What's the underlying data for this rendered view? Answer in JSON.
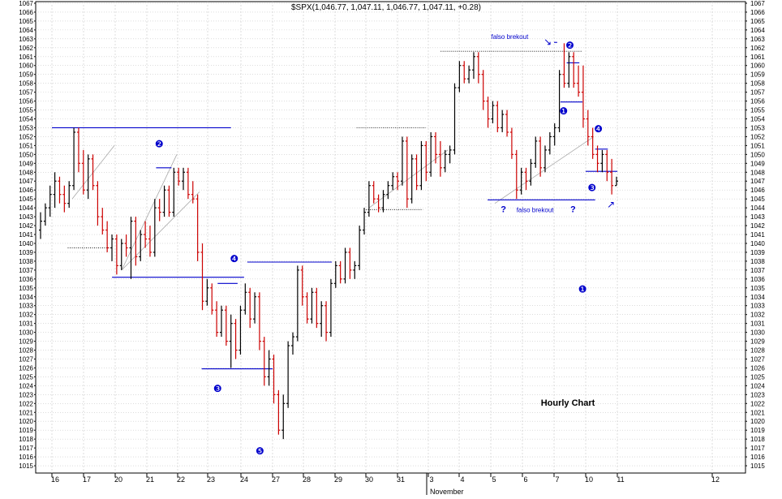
{
  "chart_data": {
    "type": "ohlc",
    "title": "$SPX(1,046.77, 1,047.11, 1,046.77, 1,047.11, +0.28)",
    "watermark": "Hourly Chart",
    "ylim": [
      1014,
      1067
    ],
    "ytick_step": 1,
    "x_tick_labels": [
      "16",
      "17",
      "20",
      "21",
      "22",
      "23",
      "24",
      "27",
      "28",
      "29",
      "30",
      "31",
      "3",
      "4",
      "5",
      "6",
      "7",
      "10",
      "11",
      "12"
    ],
    "x_month_label": "November",
    "colors": {
      "up": "#000000",
      "down": "#cc0000",
      "lines": "#0000cc",
      "grid": "#c8c8c8",
      "trend": "#a8a8a8",
      "text": "#000000",
      "marker": "#0000cc"
    },
    "candles": [
      {
        "o": 1041.5,
        "h": 1043.5,
        "l": 1040.5,
        "c": 1042.5
      },
      {
        "o": 1042.5,
        "h": 1044.5,
        "l": 1042,
        "c": 1044
      },
      {
        "o": 1044,
        "h": 1046.5,
        "l": 1043,
        "c": 1045.5
      },
      {
        "o": 1045.5,
        "h": 1048,
        "l": 1044,
        "c": 1047
      },
      {
        "o": 1047,
        "h": 1047.5,
        "l": 1044.5,
        "c": 1045.5
      },
      {
        "o": 1045.5,
        "h": 1046.5,
        "l": 1043.5,
        "c": 1044.5
      },
      {
        "o": 1044.5,
        "h": 1047,
        "l": 1044,
        "c": 1046.5
      },
      {
        "o": 1046.5,
        "h": 1053,
        "l": 1046,
        "c": 1052.5
      },
      {
        "o": 1052.5,
        "h": 1053,
        "l": 1048,
        "c": 1049
      },
      {
        "o": 1049,
        "h": 1050.5,
        "l": 1045.5,
        "c": 1046
      },
      {
        "o": 1046,
        "h": 1050,
        "l": 1045,
        "c": 1049.5
      },
      {
        "o": 1049.5,
        "h": 1050,
        "l": 1046,
        "c": 1046.5
      },
      {
        "o": 1046.5,
        "h": 1047,
        "l": 1042,
        "c": 1043
      },
      {
        "o": 1043,
        "h": 1044,
        "l": 1041,
        "c": 1041.5
      },
      {
        "o": 1041.5,
        "h": 1042.5,
        "l": 1039,
        "c": 1039.5
      },
      {
        "o": 1039.5,
        "h": 1041,
        "l": 1038,
        "c": 1040.5
      },
      {
        "o": 1040.5,
        "h": 1041,
        "l": 1036.5,
        "c": 1037.5
      },
      {
        "o": 1037.5,
        "h": 1040.5,
        "l": 1037,
        "c": 1040
      },
      {
        "o": 1040,
        "h": 1041,
        "l": 1038.5,
        "c": 1039.5
      },
      {
        "o": 1039.5,
        "h": 1043,
        "l": 1036,
        "c": 1042.5
      },
      {
        "o": 1042.5,
        "h": 1043,
        "l": 1037.5,
        "c": 1038.5
      },
      {
        "o": 1038.5,
        "h": 1041.5,
        "l": 1038,
        "c": 1041
      },
      {
        "o": 1041,
        "h": 1042.5,
        "l": 1039.5,
        "c": 1040.5
      },
      {
        "o": 1040.5,
        "h": 1042,
        "l": 1038.5,
        "c": 1039
      },
      {
        "o": 1039,
        "h": 1045,
        "l": 1038.5,
        "c": 1044
      },
      {
        "o": 1044,
        "h": 1045,
        "l": 1042.5,
        "c": 1043.5
      },
      {
        "o": 1043.5,
        "h": 1046.5,
        "l": 1043,
        "c": 1046
      },
      {
        "o": 1046,
        "h": 1046.5,
        "l": 1043,
        "c": 1043.5
      },
      {
        "o": 1043.5,
        "h": 1048.5,
        "l": 1043,
        "c": 1048
      },
      {
        "o": 1048,
        "h": 1048.5,
        "l": 1046.5,
        "c": 1047
      },
      {
        "o": 1047,
        "h": 1048.5,
        "l": 1046,
        "c": 1048
      },
      {
        "o": 1048,
        "h": 1048.5,
        "l": 1045,
        "c": 1045.5
      },
      {
        "o": 1045.5,
        "h": 1047,
        "l": 1044.5,
        "c": 1045
      },
      {
        "o": 1045,
        "h": 1045.5,
        "l": 1038,
        "c": 1039
      },
      {
        "o": 1039,
        "h": 1040,
        "l": 1032.5,
        "c": 1033.5
      },
      {
        "o": 1033.5,
        "h": 1036,
        "l": 1033,
        "c": 1035
      },
      {
        "o": 1035,
        "h": 1035.5,
        "l": 1032,
        "c": 1032.5
      },
      {
        "o": 1032.5,
        "h": 1033.5,
        "l": 1029.5,
        "c": 1030
      },
      {
        "o": 1030,
        "h": 1033,
        "l": 1029.5,
        "c": 1032.5
      },
      {
        "o": 1032.5,
        "h": 1033,
        "l": 1028.5,
        "c": 1029
      },
      {
        "o": 1029,
        "h": 1032,
        "l": 1026,
        "c": 1031
      },
      {
        "o": 1031,
        "h": 1031.5,
        "l": 1027,
        "c": 1028
      },
      {
        "o": 1028,
        "h": 1033,
        "l": 1027.5,
        "c": 1032.5
      },
      {
        "o": 1032.5,
        "h": 1035.5,
        "l": 1032,
        "c": 1034.5
      },
      {
        "o": 1034.5,
        "h": 1035,
        "l": 1030.5,
        "c": 1031.5
      },
      {
        "o": 1031.5,
        "h": 1034.5,
        "l": 1031,
        "c": 1034
      },
      {
        "o": 1034,
        "h": 1034.5,
        "l": 1028,
        "c": 1029
      },
      {
        "o": 1029,
        "h": 1029.5,
        "l": 1024,
        "c": 1025
      },
      {
        "o": 1025,
        "h": 1028,
        "l": 1024,
        "c": 1027
      },
      {
        "o": 1027,
        "h": 1027.5,
        "l": 1022,
        "c": 1023
      },
      {
        "o": 1023,
        "h": 1023.5,
        "l": 1018.5,
        "c": 1019
      },
      {
        "o": 1019,
        "h": 1023,
        "l": 1018,
        "c": 1022
      },
      {
        "o": 1022,
        "h": 1029,
        "l": 1021.5,
        "c": 1028.5
      },
      {
        "o": 1028.5,
        "h": 1030,
        "l": 1027.5,
        "c": 1029.5
      },
      {
        "o": 1029.5,
        "h": 1037.5,
        "l": 1029,
        "c": 1037
      },
      {
        "o": 1037,
        "h": 1037.5,
        "l": 1033,
        "c": 1034
      },
      {
        "o": 1034,
        "h": 1034.5,
        "l": 1031,
        "c": 1031.5
      },
      {
        "o": 1031.5,
        "h": 1035,
        "l": 1031,
        "c": 1034.5
      },
      {
        "o": 1034.5,
        "h": 1035,
        "l": 1030.5,
        "c": 1031
      },
      {
        "o": 1031,
        "h": 1033.5,
        "l": 1029.5,
        "c": 1033
      },
      {
        "o": 1033,
        "h": 1033.5,
        "l": 1029,
        "c": 1030
      },
      {
        "o": 1030,
        "h": 1036,
        "l": 1029.5,
        "c": 1035.5
      },
      {
        "o": 1035.5,
        "h": 1038,
        "l": 1035,
        "c": 1037.5
      },
      {
        "o": 1037.5,
        "h": 1038,
        "l": 1035.5,
        "c": 1036
      },
      {
        "o": 1036,
        "h": 1039.5,
        "l": 1035.5,
        "c": 1039
      },
      {
        "o": 1039,
        "h": 1039.5,
        "l": 1036,
        "c": 1037
      },
      {
        "o": 1037,
        "h": 1038,
        "l": 1036,
        "c": 1037.5
      },
      {
        "o": 1037.5,
        "h": 1042,
        "l": 1037,
        "c": 1041.5
      },
      {
        "o": 1041.5,
        "h": 1044,
        "l": 1041,
        "c": 1043.5
      },
      {
        "o": 1043.5,
        "h": 1047,
        "l": 1043,
        "c": 1046.5
      },
      {
        "o": 1046.5,
        "h": 1047,
        "l": 1044.5,
        "c": 1045
      },
      {
        "o": 1045,
        "h": 1045.5,
        "l": 1043.5,
        "c": 1044
      },
      {
        "o": 1044,
        "h": 1046,
        "l": 1043.5,
        "c": 1045.5
      },
      {
        "o": 1045.5,
        "h": 1047,
        "l": 1045,
        "c": 1046.5
      },
      {
        "o": 1046.5,
        "h": 1048,
        "l": 1046,
        "c": 1047.5
      },
      {
        "o": 1047.5,
        "h": 1048,
        "l": 1046,
        "c": 1047
      },
      {
        "o": 1047,
        "h": 1052,
        "l": 1046.5,
        "c": 1051.5
      },
      {
        "o": 1051.5,
        "h": 1052,
        "l": 1044,
        "c": 1045
      },
      {
        "o": 1045,
        "h": 1050,
        "l": 1044.5,
        "c": 1049.5
      },
      {
        "o": 1049.5,
        "h": 1050,
        "l": 1046,
        "c": 1046.5
      },
      {
        "o": 1046.5,
        "h": 1051.5,
        "l": 1046,
        "c": 1051
      },
      {
        "o": 1051,
        "h": 1051.5,
        "l": 1047,
        "c": 1048
      },
      {
        "o": 1048,
        "h": 1052.5,
        "l": 1047.5,
        "c": 1052
      },
      {
        "o": 1052,
        "h": 1052.5,
        "l": 1049,
        "c": 1050
      },
      {
        "o": 1050,
        "h": 1051.5,
        "l": 1047.5,
        "c": 1048.5
      },
      {
        "o": 1048.5,
        "h": 1050.5,
        "l": 1048,
        "c": 1050
      },
      {
        "o": 1050,
        "h": 1051,
        "l": 1049,
        "c": 1050.5
      },
      {
        "o": 1050.5,
        "h": 1058,
        "l": 1050,
        "c": 1057.5
      },
      {
        "o": 1057.5,
        "h": 1060.5,
        "l": 1057,
        "c": 1060
      },
      {
        "o": 1060,
        "h": 1060.5,
        "l": 1058,
        "c": 1058.5
      },
      {
        "o": 1058.5,
        "h": 1060,
        "l": 1058,
        "c": 1059.5
      },
      {
        "o": 1059.5,
        "h": 1061.5,
        "l": 1058.5,
        "c": 1061
      },
      {
        "o": 1061,
        "h": 1061.5,
        "l": 1058,
        "c": 1059
      },
      {
        "o": 1059,
        "h": 1059.5,
        "l": 1055,
        "c": 1056
      },
      {
        "o": 1056,
        "h": 1056.5,
        "l": 1053,
        "c": 1054
      },
      {
        "o": 1054,
        "h": 1056,
        "l": 1053.5,
        "c": 1055.5
      },
      {
        "o": 1055.5,
        "h": 1056,
        "l": 1052.5,
        "c": 1053
      },
      {
        "o": 1053,
        "h": 1055,
        "l": 1052.5,
        "c": 1054.5
      },
      {
        "o": 1054.5,
        "h": 1055,
        "l": 1052,
        "c": 1052.5
      },
      {
        "o": 1052.5,
        "h": 1053,
        "l": 1049.5,
        "c": 1050
      },
      {
        "o": 1050,
        "h": 1050.5,
        "l": 1045,
        "c": 1046
      },
      {
        "o": 1046,
        "h": 1048.5,
        "l": 1045.5,
        "c": 1048
      },
      {
        "o": 1048,
        "h": 1048.5,
        "l": 1046,
        "c": 1047
      },
      {
        "o": 1047,
        "h": 1049.5,
        "l": 1046.5,
        "c": 1049
      },
      {
        "o": 1049,
        "h": 1052,
        "l": 1048.5,
        "c": 1051.5
      },
      {
        "o": 1051.5,
        "h": 1052,
        "l": 1047.5,
        "c": 1048.5
      },
      {
        "o": 1048.5,
        "h": 1051,
        "l": 1048,
        "c": 1050.5
      },
      {
        "o": 1050.5,
        "h": 1052.5,
        "l": 1050,
        "c": 1052
      },
      {
        "o": 1052,
        "h": 1053.5,
        "l": 1051,
        "c": 1053
      },
      {
        "o": 1053,
        "h": 1059.5,
        "l": 1052.5,
        "c": 1059
      },
      {
        "o": 1059,
        "h": 1062.5,
        "l": 1057.5,
        "c": 1058
      },
      {
        "o": 1058,
        "h": 1061.5,
        "l": 1057.5,
        "c": 1061
      },
      {
        "o": 1061,
        "h": 1061.5,
        "l": 1057.5,
        "c": 1058
      },
      {
        "o": 1058,
        "h": 1060,
        "l": 1056.5,
        "c": 1057
      },
      {
        "o": 1057,
        "h": 1060,
        "l": 1053,
        "c": 1054
      },
      {
        "o": 1054,
        "h": 1055,
        "l": 1051,
        "c": 1052
      },
      {
        "o": 1052,
        "h": 1053,
        "l": 1049.5,
        "c": 1050
      },
      {
        "o": 1050,
        "h": 1051,
        "l": 1048,
        "c": 1049
      },
      {
        "o": 1049,
        "h": 1050.5,
        "l": 1048,
        "c": 1050
      },
      {
        "o": 1050,
        "h": 1050.5,
        "l": 1047,
        "c": 1048
      },
      {
        "o": 1048,
        "h": 1049.5,
        "l": 1045.5,
        "c": 1046.5
      },
      {
        "o": 1046.5,
        "h": 1047.5,
        "l": 1046.5,
        "c": 1047
      }
    ],
    "annotations": [
      {
        "text": "❶",
        "at": [
          9.9,
          1034.5
        ],
        "kind": "marker"
      },
      {
        "text": "❷",
        "at": [
          21.4,
          1050.8
        ],
        "kind": "marker"
      },
      {
        "text": "❸",
        "at": [
          23.3,
          1023.3
        ],
        "kind": "marker"
      },
      {
        "text": "❹",
        "at": [
          23.8,
          1037.9
        ],
        "kind": "marker"
      },
      {
        "text": "❺",
        "at": [
          24.6,
          1016.3
        ],
        "kind": "marker"
      },
      {
        "text": "❶",
        "at": [
          7.3,
          1054.5
        ],
        "kind": "marker"
      },
      {
        "text": "❷",
        "at": [
          7.5,
          1061.9
        ],
        "kind": "marker"
      },
      {
        "text": "❸",
        "at": [
          10.2,
          1045.9
        ],
        "kind": "marker"
      },
      {
        "text": "❹",
        "at": [
          10.4,
          1052.5
        ],
        "kind": "marker"
      },
      {
        "text": "falso brekout",
        "at": [
          5.6,
          1063
        ],
        "kind": "label"
      },
      {
        "text": "falso brekout",
        "at": [
          6.4,
          1043.5
        ],
        "kind": "label"
      },
      {
        "text": "?",
        "at": [
          5.4,
          1043.5
        ],
        "kind": "question"
      },
      {
        "text": "?",
        "at": [
          9.6,
          1043.5
        ],
        "kind": "question"
      },
      {
        "text": "↘",
        "at": [
          6.8,
          1062.3
        ],
        "kind": "arrow"
      },
      {
        "text": "↗",
        "at": [
          10.8,
          1044
        ],
        "kind": "arrow"
      }
    ],
    "levels": [
      {
        "y": 1053,
        "from": "16",
        "to": "23.7",
        "style": "solid"
      },
      {
        "y": 1039.5,
        "from": "15.5",
        "to": "19.9",
        "style": "dotted"
      },
      {
        "y": 1036.2,
        "from": "19.9",
        "to": "24.1",
        "style": "solid"
      },
      {
        "y": 1048.5,
        "from": "21.3",
        "to": "21.8",
        "style": "solid"
      },
      {
        "y": 1035.5,
        "from": "23.3",
        "to": "23.9",
        "style": "solid"
      },
      {
        "y": 1025.9,
        "from": "22.8",
        "to": "27",
        "style": "solid"
      },
      {
        "y": 1037.9,
        "from": "26.2",
        "to": "28.9",
        "style": "solid"
      },
      {
        "y": 1053,
        "from": "29.7",
        "to": "31.9",
        "style": "dotted"
      },
      {
        "y": 1043.8,
        "from": "30",
        "to": "31.8",
        "style": "dotted"
      },
      {
        "y": 1061.6,
        "from": "3.4",
        "to": "7.9",
        "style": "dotted"
      },
      {
        "y": 1062.6,
        "from": "7",
        "to": "8.1",
        "style": "solid"
      },
      {
        "y": 1060.3,
        "from": "7.4",
        "to": "7.8",
        "style": "solid"
      },
      {
        "y": 1055.9,
        "from": "7.2",
        "to": "8.9",
        "style": "solid"
      },
      {
        "y": 1050.6,
        "from": "10.3",
        "to": "10.7",
        "style": "solid"
      },
      {
        "y": 1048.1,
        "from": "10",
        "to": "11",
        "style": "solid"
      },
      {
        "y": 1044.9,
        "from": "4.9",
        "to": "10.3",
        "style": "solid"
      }
    ]
  }
}
